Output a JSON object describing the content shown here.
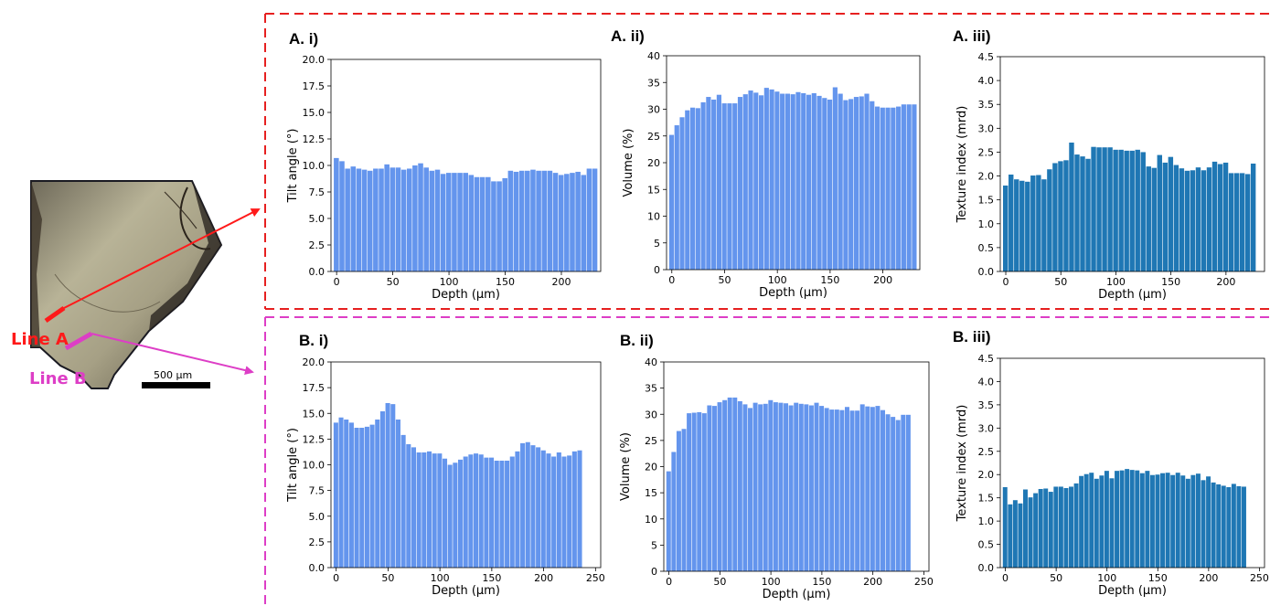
{
  "colors": {
    "bar_light": "#6495ed",
    "bar_dark": "#1f77b4",
    "line_a": "#ff1a1a",
    "line_b": "#dd3ec6",
    "frame_a": "#e62020",
    "frame_b": "#dd3ec6"
  },
  "crystal": {
    "line_a_label": "Line A",
    "line_b_label": "Line B",
    "scale_bar_label": "500 µm",
    "description_icon": "crystal-micrograph"
  },
  "chart_data": [
    {
      "panel": "A. i)",
      "type": "bar",
      "color": "#6495ed",
      "xlabel": "Depth (µm)",
      "ylabel": "Tilt angle (°)",
      "x_start": 0,
      "x_step": 5,
      "xlim": [
        -5,
        235
      ],
      "x_ticks": [
        0,
        50,
        100,
        150,
        200
      ],
      "x_tick_labels": [
        "0",
        "50",
        "100",
        "150",
        "200"
      ],
      "ylim": [
        0,
        20
      ],
      "y_ticks": [
        0,
        2.5,
        5,
        7.5,
        10,
        12.5,
        15,
        17.5,
        20
      ],
      "y_tick_labels": [
        "0.0",
        "2.5",
        "5.0",
        "7.5",
        "10.0",
        "12.5",
        "15.0",
        "17.5",
        "20.0"
      ],
      "values": [
        10.7,
        10.4,
        9.7,
        9.9,
        9.7,
        9.6,
        9.5,
        9.7,
        9.7,
        10.1,
        9.8,
        9.8,
        9.6,
        9.7,
        10.0,
        10.2,
        9.8,
        9.5,
        9.6,
        9.2,
        9.3,
        9.3,
        9.3,
        9.3,
        9.1,
        8.9,
        8.9,
        8.9,
        8.5,
        8.5,
        8.8,
        9.5,
        9.4,
        9.5,
        9.5,
        9.6,
        9.5,
        9.5,
        9.5,
        9.3,
        9.1,
        9.2,
        9.3,
        9.4,
        9.1,
        9.7,
        9.7
      ]
    },
    {
      "panel": "A. ii)",
      "type": "bar",
      "color": "#6495ed",
      "xlabel": "Depth (µm)",
      "ylabel": "Volume (%)",
      "x_start": 0,
      "x_step": 5,
      "xlim": [
        -5,
        235
      ],
      "x_ticks": [
        0,
        50,
        100,
        150,
        200
      ],
      "x_tick_labels": [
        "0",
        "50",
        "100",
        "150",
        "200"
      ],
      "ylim": [
        0,
        40
      ],
      "y_ticks": [
        0,
        5,
        10,
        15,
        20,
        25,
        30,
        35,
        40
      ],
      "y_tick_labels": [
        "0",
        "5",
        "10",
        "15",
        "20",
        "25",
        "30",
        "35",
        "40"
      ],
      "values": [
        25.2,
        27.0,
        28.5,
        29.8,
        30.3,
        30.2,
        31.3,
        32.3,
        31.8,
        32.7,
        31.1,
        31.1,
        31.1,
        32.3,
        32.8,
        33.5,
        33.1,
        32.6,
        34.0,
        33.7,
        33.3,
        32.9,
        32.9,
        32.8,
        33.2,
        33.0,
        32.7,
        33.0,
        32.5,
        32.1,
        31.8,
        34.1,
        32.9,
        31.7,
        31.9,
        32.3,
        32.4,
        32.9,
        31.5,
        30.5,
        30.3,
        30.3,
        30.3,
        30.5,
        30.9,
        30.9,
        30.9
      ]
    },
    {
      "panel": "A. iii)",
      "type": "bar",
      "color": "#1f77b4",
      "xlabel": "Depth (µm)",
      "ylabel": "Texture index (mrd)",
      "x_start": 0,
      "x_step": 5,
      "xlim": [
        -5,
        235
      ],
      "x_ticks": [
        0,
        50,
        100,
        150,
        200
      ],
      "x_tick_labels": [
        "0",
        "50",
        "100",
        "150",
        "200"
      ],
      "ylim": [
        0,
        4.5
      ],
      "y_ticks": [
        0,
        0.5,
        1,
        1.5,
        2,
        2.5,
        3,
        3.5,
        4,
        4.5
      ],
      "y_tick_labels": [
        "0.0",
        "0.5",
        "1.0",
        "1.5",
        "2.0",
        "2.5",
        "3.0",
        "3.5",
        "4.0",
        "4.5"
      ],
      "values": [
        1.8,
        2.03,
        1.93,
        1.9,
        1.88,
        2.01,
        2.02,
        1.93,
        2.14,
        2.27,
        2.31,
        2.33,
        2.7,
        2.45,
        2.41,
        2.36,
        2.61,
        2.6,
        2.6,
        2.6,
        2.55,
        2.55,
        2.53,
        2.53,
        2.55,
        2.5,
        2.2,
        2.17,
        2.44,
        2.28,
        2.4,
        2.23,
        2.16,
        2.11,
        2.12,
        2.18,
        2.12,
        2.18,
        2.3,
        2.25,
        2.28,
        2.06,
        2.06,
        2.06,
        2.04,
        2.26
      ]
    },
    {
      "panel": "B. i)",
      "type": "bar",
      "color": "#6495ed",
      "xlabel": "Depth (µm)",
      "ylabel": "Tilt angle (°)",
      "x_start": 0,
      "x_step": 5,
      "xlim": [
        -5,
        255
      ],
      "x_ticks": [
        0,
        50,
        100,
        150,
        200,
        250
      ],
      "x_tick_labels": [
        "0",
        "50",
        "100",
        "150",
        "200",
        "250"
      ],
      "ylim": [
        0,
        20
      ],
      "y_ticks": [
        0,
        2.5,
        5,
        7.5,
        10,
        12.5,
        15,
        17.5,
        20
      ],
      "y_tick_labels": [
        "0.0",
        "2.5",
        "5.0",
        "7.5",
        "10.0",
        "12.5",
        "15.0",
        "17.5",
        "20.0"
      ],
      "values": [
        14.1,
        14.6,
        14.4,
        14.1,
        13.6,
        13.6,
        13.7,
        13.9,
        14.4,
        15.2,
        16.0,
        15.9,
        14.4,
        12.9,
        12.0,
        11.7,
        11.2,
        11.2,
        11.3,
        11.1,
        11.1,
        10.6,
        10.0,
        10.2,
        10.5,
        10.8,
        11.0,
        11.1,
        11.0,
        10.7,
        10.7,
        10.4,
        10.4,
        10.4,
        10.8,
        11.3,
        12.1,
        12.2,
        11.9,
        11.7,
        11.4,
        11.1,
        10.8,
        11.2,
        10.8,
        10.9,
        11.3,
        11.4
      ]
    },
    {
      "panel": "B. ii)",
      "type": "bar",
      "color": "#6495ed",
      "xlabel": "Depth (µm)",
      "ylabel": "Volume (%)",
      "x_start": 0,
      "x_step": 5,
      "xlim": [
        -5,
        255
      ],
      "x_ticks": [
        0,
        50,
        100,
        150,
        200,
        250
      ],
      "x_tick_labels": [
        "0",
        "50",
        "100",
        "150",
        "200",
        "250"
      ],
      "ylim": [
        0,
        40
      ],
      "y_ticks": [
        0,
        5,
        10,
        15,
        20,
        25,
        30,
        35,
        40
      ],
      "y_tick_labels": [
        "0",
        "5",
        "10",
        "15",
        "20",
        "25",
        "30",
        "35",
        "40"
      ],
      "values": [
        19.1,
        22.8,
        26.8,
        27.2,
        30.2,
        30.3,
        30.4,
        30.2,
        31.7,
        31.6,
        32.3,
        32.7,
        33.2,
        33.2,
        32.5,
        31.9,
        31.2,
        32.2,
        31.9,
        32.0,
        32.7,
        32.3,
        32.2,
        32.1,
        31.7,
        32.2,
        32.0,
        31.9,
        31.7,
        32.2,
        31.6,
        31.2,
        30.9,
        30.9,
        30.8,
        31.4,
        30.7,
        30.7,
        31.9,
        31.5,
        31.4,
        31.6,
        30.8,
        30.0,
        29.5,
        28.9,
        29.9,
        29.9
      ]
    },
    {
      "panel": "B. iii)",
      "type": "bar",
      "color": "#1f77b4",
      "xlabel": "Depth (µm)",
      "ylabel": "Texture index (mrd)",
      "x_start": 0,
      "x_step": 5,
      "xlim": [
        -5,
        255
      ],
      "x_ticks": [
        0,
        50,
        100,
        150,
        200,
        250
      ],
      "x_tick_labels": [
        "0",
        "50",
        "100",
        "150",
        "200",
        "250"
      ],
      "ylim": [
        0,
        4.5
      ],
      "y_ticks": [
        0,
        0.5,
        1,
        1.5,
        2,
        2.5,
        3,
        3.5,
        4,
        4.5
      ],
      "y_tick_labels": [
        "0.0",
        "0.5",
        "1.0",
        "1.5",
        "2.0",
        "2.5",
        "3.0",
        "3.5",
        "4.0",
        "4.5"
      ],
      "values": [
        1.73,
        1.36,
        1.45,
        1.38,
        1.68,
        1.51,
        1.6,
        1.69,
        1.7,
        1.63,
        1.74,
        1.74,
        1.71,
        1.74,
        1.81,
        1.97,
        2.01,
        2.04,
        1.91,
        1.98,
        2.08,
        1.92,
        2.08,
        2.09,
        2.12,
        2.1,
        2.09,
        2.03,
        2.08,
        1.99,
        2.0,
        2.03,
        2.04,
        1.99,
        2.04,
        1.98,
        1.91,
        1.99,
        2.02,
        1.88,
        1.96,
        1.83,
        1.79,
        1.76,
        1.73,
        1.8,
        1.75,
        1.74
      ]
    }
  ]
}
